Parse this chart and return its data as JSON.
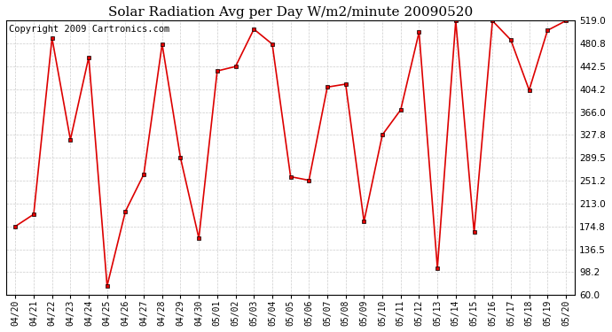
{
  "title": "Solar Radiation Avg per Day W/m2/minute 20090520",
  "copyright": "Copyright 2009 Cartronics.com",
  "labels": [
    "04/20",
    "04/21",
    "04/22",
    "04/23",
    "04/24",
    "04/25",
    "04/26",
    "04/27",
    "04/28",
    "04/29",
    "04/30",
    "05/01",
    "05/02",
    "05/03",
    "05/04",
    "05/05",
    "05/06",
    "05/07",
    "05/08",
    "05/09",
    "05/10",
    "05/11",
    "05/12",
    "05/13",
    "05/14",
    "05/15",
    "05/16",
    "05/17",
    "05/18",
    "05/19",
    "05/20"
  ],
  "values": [
    174.8,
    195.0,
    490.0,
    320.0,
    458.0,
    75.0,
    200.0,
    262.0,
    480.0,
    289.5,
    155.0,
    435.0,
    442.5,
    505.0,
    480.0,
    258.0,
    252.0,
    408.0,
    413.0,
    183.0,
    328.0,
    370.0,
    500.0,
    105.0,
    519.0,
    165.0,
    519.0,
    487.0,
    403.0,
    503.0,
    519.0
  ],
  "yticks": [
    60.0,
    98.2,
    136.5,
    174.8,
    213.0,
    251.2,
    289.5,
    327.8,
    366.0,
    404.2,
    442.5,
    480.8,
    519.0
  ],
  "ymin": 60.0,
  "ymax": 519.0,
  "line_color": "#dd0000",
  "marker_color": "#000000",
  "bg_color": "#ffffff",
  "grid_color": "#cccccc",
  "title_fontsize": 11,
  "copyright_fontsize": 7.5
}
